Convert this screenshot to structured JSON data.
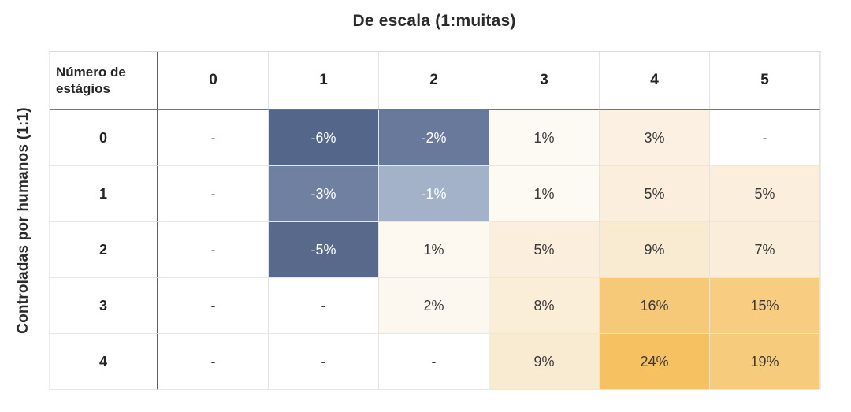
{
  "chart_data": {
    "type": "heatmap",
    "title": "De escala (1:muitas)",
    "y_axis_label": "Controladas por humanos (1:1)",
    "corner_label": "Número de estágios",
    "columns": [
      "0",
      "1",
      "2",
      "3",
      "4",
      "5"
    ],
    "row_labels": [
      "0",
      "1",
      "2",
      "3",
      "4"
    ],
    "values": [
      [
        null,
        -6,
        -2,
        1,
        3,
        null
      ],
      [
        null,
        -3,
        -1,
        1,
        5,
        5
      ],
      [
        null,
        -5,
        1,
        5,
        9,
        7
      ],
      [
        null,
        null,
        2,
        8,
        16,
        15
      ],
      [
        null,
        null,
        null,
        9,
        24,
        19
      ]
    ],
    "palette": {
      "negative_dark_blue": "#54668a",
      "negative_light_blue": "#a3b2c9",
      "positive_light_cream": "#fdfaf3",
      "positive_dark_orange": "#f5c161",
      "empty_cell": "#ffffff"
    },
    "cells": [
      [
        {
          "text": "-",
          "bg": "#ffffff",
          "fg": "#3a3a3a"
        },
        {
          "text": "-6%",
          "bg": "#54668a",
          "fg": "#ffffff"
        },
        {
          "text": "-2%",
          "bg": "#68799b",
          "fg": "#ffffff"
        },
        {
          "text": "1%",
          "bg": "#fdfaf3",
          "fg": "#3a3a3a"
        },
        {
          "text": "3%",
          "bg": "#fbf0e1",
          "fg": "#3a3a3a"
        },
        {
          "text": "-",
          "bg": "#ffffff",
          "fg": "#3a3a3a"
        }
      ],
      [
        {
          "text": "-",
          "bg": "#ffffff",
          "fg": "#3a3a3a"
        },
        {
          "text": "-3%",
          "bg": "#6f80a0",
          "fg": "#ffffff"
        },
        {
          "text": "-1%",
          "bg": "#a3b2c9",
          "fg": "#ffffff"
        },
        {
          "text": "1%",
          "bg": "#fdfaf3",
          "fg": "#3a3a3a"
        },
        {
          "text": "5%",
          "bg": "#fbeedd",
          "fg": "#3a3a3a"
        },
        {
          "text": "5%",
          "bg": "#fbeedd",
          "fg": "#3a3a3a"
        }
      ],
      [
        {
          "text": "-",
          "bg": "#ffffff",
          "fg": "#3a3a3a"
        },
        {
          "text": "-5%",
          "bg": "#58698c",
          "fg": "#ffffff"
        },
        {
          "text": "1%",
          "bg": "#fdf9f1",
          "fg": "#3a3a3a"
        },
        {
          "text": "5%",
          "bg": "#fbeedd",
          "fg": "#3a3a3a"
        },
        {
          "text": "9%",
          "bg": "#f9ebd2",
          "fg": "#3a3a3a"
        },
        {
          "text": "7%",
          "bg": "#faeeda",
          "fg": "#3a3a3a"
        }
      ],
      [
        {
          "text": "-",
          "bg": "#ffffff",
          "fg": "#3a3a3a"
        },
        {
          "text": "-",
          "bg": "#ffffff",
          "fg": "#3a3a3a"
        },
        {
          "text": "2%",
          "bg": "#fcf8ef",
          "fg": "#3a3a3a"
        },
        {
          "text": "8%",
          "bg": "#fbeed8",
          "fg": "#3a3a3a"
        },
        {
          "text": "16%",
          "bg": "#f6c978",
          "fg": "#3a3a3a"
        },
        {
          "text": "15%",
          "bg": "#f8cd81",
          "fg": "#3a3a3a"
        }
      ],
      [
        {
          "text": "-",
          "bg": "#ffffff",
          "fg": "#3a3a3a"
        },
        {
          "text": "-",
          "bg": "#ffffff",
          "fg": "#3a3a3a"
        },
        {
          "text": "-",
          "bg": "#ffffff",
          "fg": "#3a3a3a"
        },
        {
          "text": "9%",
          "bg": "#f9ebd2",
          "fg": "#3a3a3a"
        },
        {
          "text": "24%",
          "bg": "#f5c161",
          "fg": "#3a3a3a"
        },
        {
          "text": "19%",
          "bg": "#f7cb7c",
          "fg": "#3a3a3a"
        }
      ]
    ]
  }
}
